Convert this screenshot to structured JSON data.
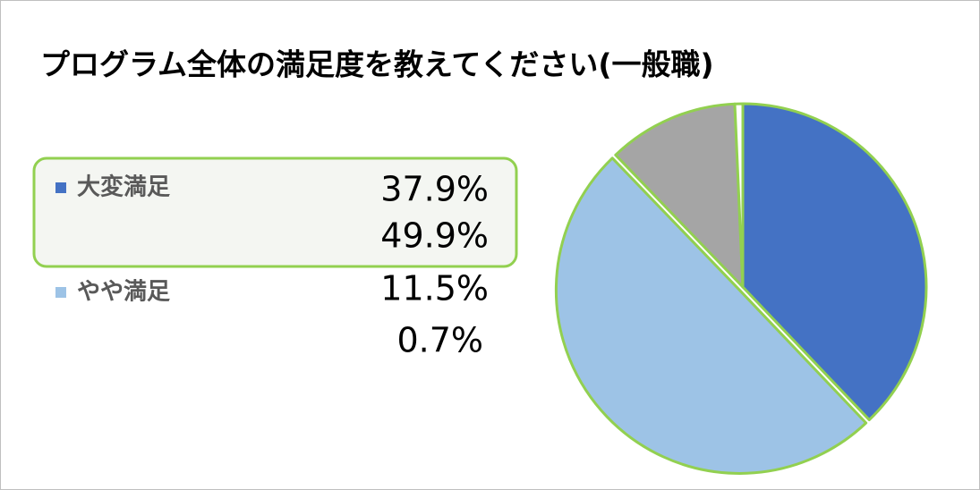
{
  "chart_data": {
    "type": "pie",
    "title": "プログラム全体の満足度を教えてください(一般職)",
    "categories": [
      "大変満足",
      "やや満足",
      null,
      null
    ],
    "values": [
      37.9,
      49.9,
      11.5,
      0.7
    ],
    "value_labels": [
      "37.9%",
      "49.9%",
      "11.5%",
      "0.7%"
    ],
    "colors": [
      "#4472c4",
      "#9dc3e6",
      "#a5a5a5",
      "#ffffff"
    ],
    "edge_color": "#92d050"
  }
}
